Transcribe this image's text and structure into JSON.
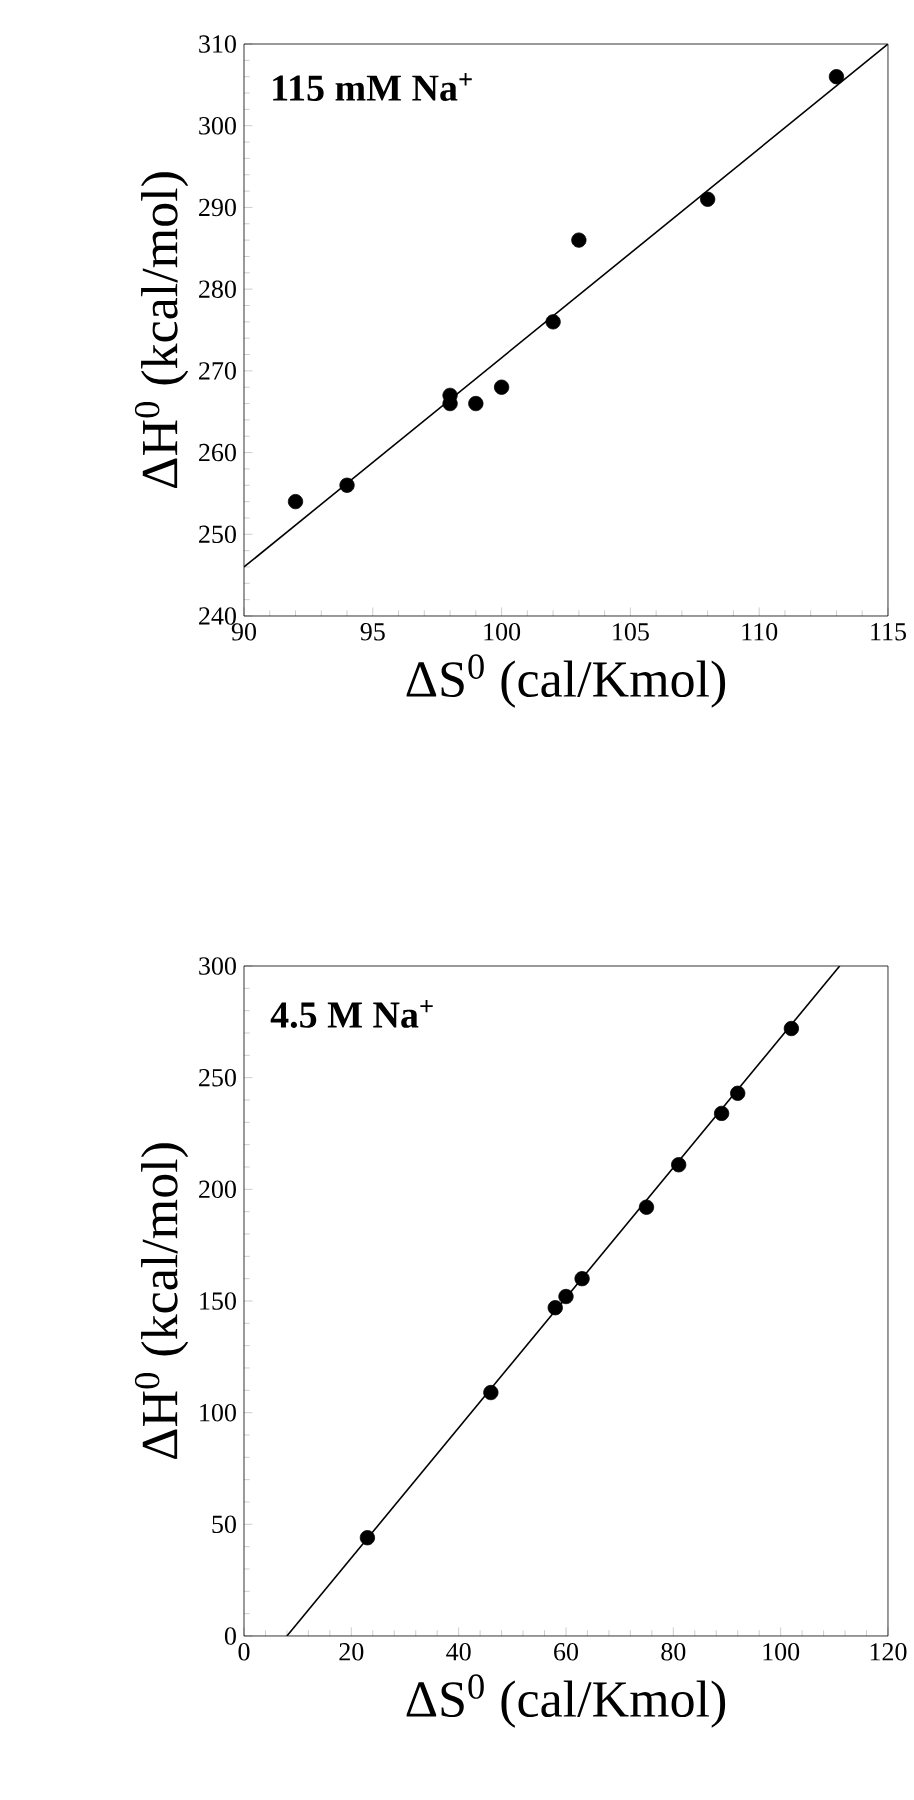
{
  "chart_data": [
    {
      "type": "scatter",
      "xlabel": "ΔS$^{0}$ (cal/Kmol)",
      "ylabel": "ΔH$^{0}$ (kcal/mol)",
      "annotations": [
        "115 mM Na$^{+}$"
      ],
      "xlim": [
        90,
        115
      ],
      "ylim": [
        240,
        310
      ],
      "xticks": [
        90,
        95,
        100,
        105,
        110,
        115
      ],
      "yticks": [
        240,
        250,
        260,
        270,
        280,
        290,
        300,
        310
      ],
      "series": [
        {
          "color": "#000000",
          "marker": "circle",
          "x": [
            92,
            94,
            98,
            98,
            99,
            100,
            102,
            103,
            108,
            113
          ],
          "values": [
            254,
            256,
            266,
            267,
            266,
            268,
            276,
            286,
            291,
            306
          ]
        },
        {
          "type": "line",
          "color": "#000000",
          "marker": "none",
          "line_style": "solid",
          "x": [
            90,
            115
          ],
          "values": [
            246,
            310
          ]
        }
      ]
    },
    {
      "type": "scatter",
      "xlabel": "ΔS$^{0}$ (cal/Kmol)",
      "ylabel": "ΔH$^{0}$ (kcal/mol)",
      "annotations": [
        "4.5 M Na$^{+}$"
      ],
      "xlim": [
        0,
        120
      ],
      "ylim": [
        0,
        300
      ],
      "xticks": [
        0,
        20,
        40,
        60,
        80,
        100,
        120
      ],
      "yticks": [
        0,
        50,
        100,
        150,
        200,
        250,
        300
      ],
      "series": [
        {
          "color": "#000000",
          "marker": "circle",
          "x": [
            23,
            46,
            58,
            60,
            63,
            75,
            81,
            89,
            92,
            102
          ],
          "values": [
            44,
            109,
            147,
            152,
            160,
            192,
            211,
            234,
            243,
            272
          ]
        },
        {
          "type": "line",
          "color": "#000000",
          "marker": "none",
          "line_style": "solid",
          "x": [
            8,
            111
          ],
          "values": [
            0,
            300
          ]
        }
      ]
    }
  ]
}
